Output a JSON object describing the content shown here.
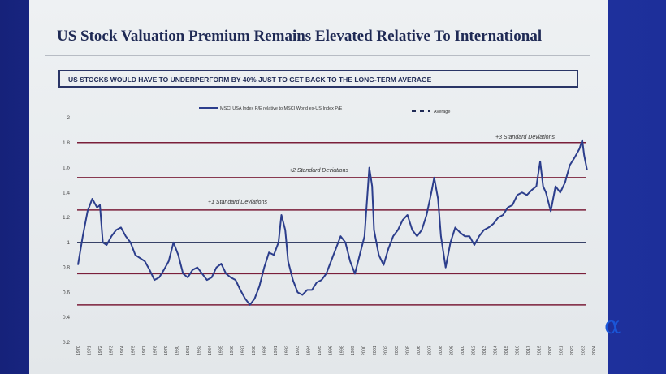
{
  "title": "US Stock Valuation Premium Remains Elevated Relative To International",
  "subtitle_box": "US STOCKS WOULD HAVE TO UNDERPERFORM BY 40% JUST TO GET BACK TO THE LONG-TERM AVERAGE",
  "logo": "α",
  "colors": {
    "series": "#2c3e8c",
    "std_lines": "#7a1f3a",
    "average": "#1f2a55"
  },
  "chart_data": {
    "type": "line",
    "legend": {
      "placement": "top-center",
      "entries": [
        "MSCI USA Index P/E relative to MSCI World ex-US Index P/E",
        "Average"
      ]
    },
    "ylim": [
      0.2,
      2
    ],
    "yticks": [
      "2",
      "1.8",
      "1.6",
      "1.4",
      "1.2",
      "1",
      "0.8",
      "0.6",
      "0.4",
      "0.2"
    ],
    "xlim": [
      1970,
      2024
    ],
    "xticks": [
      "1970",
      "1971",
      "1972",
      "1973",
      "1974",
      "1975",
      "1977",
      "1978",
      "1979",
      "1980",
      "1981",
      "1982",
      "1984",
      "1985",
      "1986",
      "1987",
      "1988",
      "1989",
      "1991",
      "1992",
      "1993",
      "1994",
      "1995",
      "1996",
      "1998",
      "1999",
      "2000",
      "2001",
      "2002",
      "2003",
      "2005",
      "2006",
      "2007",
      "2008",
      "2009",
      "2010",
      "2012",
      "2013",
      "2014",
      "2015",
      "2016",
      "2017",
      "2019",
      "2020",
      "2021",
      "2022",
      "2023",
      "2024"
    ],
    "reference_lines": [
      {
        "label": "+3 Standard Deviations",
        "value": 1.8
      },
      {
        "label": "+2 Standard Deviations",
        "value": 1.52
      },
      {
        "label": "+1 Standard Deviations",
        "value": 1.26
      },
      {
        "label": "",
        "value": 0.75
      },
      {
        "label": "",
        "value": 0.5
      }
    ],
    "average": 1.0,
    "series": [
      {
        "name": "MSCI USA Index P/E relative to MSCI World ex-US Index P/E",
        "x": [
          1970,
          1970.5,
          1971,
          1971.5,
          1972,
          1972.3,
          1972.6,
          1973,
          1973.5,
          1974,
          1974.5,
          1975,
          1975.5,
          1976,
          1977,
          1977.5,
          1978,
          1978.5,
          1979,
          1979.5,
          1980,
          1980.5,
          1981,
          1981.5,
          1982,
          1982.5,
          1983,
          1983.5,
          1984,
          1984.5,
          1985,
          1985.5,
          1986,
          1986.5,
          1987,
          1987.5,
          1988,
          1988.5,
          1989,
          1989.5,
          1990,
          1990.5,
          1991,
          1991.3,
          1991.7,
          1992,
          1992.5,
          1993,
          1993.5,
          1994,
          1994.5,
          1995,
          1995.5,
          1996,
          1996.5,
          1997,
          1997.5,
          1998,
          1998.5,
          1999,
          1999.5,
          2000,
          2000.5,
          2000.8,
          2001,
          2001.5,
          2002,
          2002.5,
          2003,
          2003.5,
          2004,
          2004.5,
          2005,
          2005.5,
          2006,
          2006.5,
          2007,
          2007.3,
          2007.7,
          2008,
          2008.5,
          2009,
          2009.5,
          2010,
          2010.5,
          2011,
          2011.5,
          2012,
          2012.5,
          2013,
          2013.5,
          2014,
          2014.5,
          2015,
          2015.5,
          2016,
          2016.5,
          2017,
          2017.5,
          2018,
          2018.4,
          2018.7,
          2019,
          2019.5,
          2020,
          2020.5,
          2021,
          2021.5,
          2022,
          2022.5,
          2022.8,
          2023,
          2023.3
        ],
        "y": [
          0.82,
          1.05,
          1.25,
          1.35,
          1.28,
          1.3,
          1.0,
          0.98,
          1.05,
          1.1,
          1.12,
          1.05,
          1.0,
          0.9,
          0.85,
          0.78,
          0.7,
          0.72,
          0.78,
          0.85,
          1.0,
          0.9,
          0.75,
          0.72,
          0.78,
          0.8,
          0.75,
          0.7,
          0.72,
          0.8,
          0.83,
          0.75,
          0.72,
          0.7,
          0.62,
          0.55,
          0.5,
          0.55,
          0.65,
          0.8,
          0.92,
          0.9,
          1.0,
          1.22,
          1.1,
          0.85,
          0.7,
          0.6,
          0.58,
          0.62,
          0.62,
          0.68,
          0.7,
          0.75,
          0.85,
          0.95,
          1.05,
          1.0,
          0.85,
          0.75,
          0.9,
          1.05,
          1.6,
          1.45,
          1.1,
          0.9,
          0.82,
          0.95,
          1.05,
          1.1,
          1.18,
          1.22,
          1.1,
          1.05,
          1.1,
          1.22,
          1.4,
          1.52,
          1.35,
          1.05,
          0.8,
          1.0,
          1.12,
          1.08,
          1.05,
          1.05,
          0.98,
          1.05,
          1.1,
          1.12,
          1.15,
          1.2,
          1.22,
          1.28,
          1.3,
          1.38,
          1.4,
          1.38,
          1.42,
          1.45,
          1.65,
          1.45,
          1.4,
          1.25,
          1.45,
          1.4,
          1.48,
          1.62,
          1.68,
          1.75,
          1.82,
          1.7,
          1.58
        ]
      }
    ]
  }
}
